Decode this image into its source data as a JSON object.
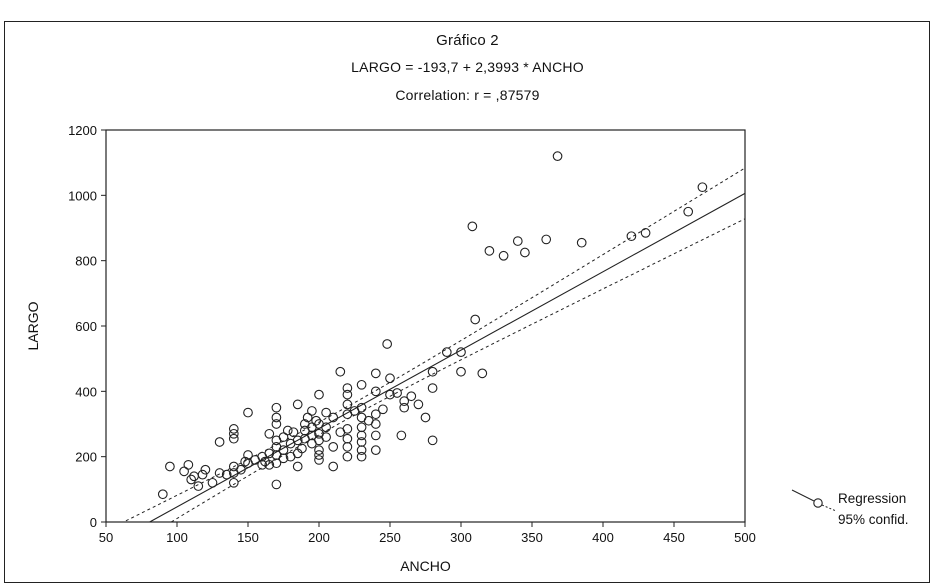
{
  "chart_data": {
    "type": "scatter",
    "title": "Gráfico  2",
    "subtitle": "LARGO = -193,7 + 2,3993 * ANCHO",
    "annotation": "Correlation: r = ,87579",
    "xlabel": "ANCHO",
    "ylabel": "LARGO",
    "xlim": [
      50,
      500
    ],
    "ylim": [
      0,
      1200
    ],
    "x_ticks": [
      50,
      100,
      150,
      200,
      250,
      300,
      350,
      400,
      450,
      500
    ],
    "y_ticks": [
      0,
      200,
      400,
      600,
      800,
      1000,
      1200
    ],
    "grid": false,
    "legend": {
      "placement": "right",
      "entries": [
        "Regression",
        "95% confid."
      ]
    },
    "regression": {
      "intercept": -193.7,
      "slope": 2.3993
    },
    "series": [
      {
        "name": "",
        "points": [
          [
            90,
            85
          ],
          [
            95,
            170
          ],
          [
            105,
            155
          ],
          [
            108,
            175
          ],
          [
            110,
            130
          ],
          [
            112,
            140
          ],
          [
            115,
            110
          ],
          [
            118,
            145
          ],
          [
            120,
            160
          ],
          [
            125,
            120
          ],
          [
            130,
            150
          ],
          [
            130,
            245
          ],
          [
            135,
            145
          ],
          [
            140,
            150
          ],
          [
            140,
            170
          ],
          [
            140,
            120
          ],
          [
            140,
            255
          ],
          [
            140,
            270
          ],
          [
            140,
            285
          ],
          [
            145,
            160
          ],
          [
            148,
            185
          ],
          [
            150,
            180
          ],
          [
            150,
            205
          ],
          [
            150,
            335
          ],
          [
            155,
            190
          ],
          [
            160,
            175
          ],
          [
            160,
            200
          ],
          [
            162,
            185
          ],
          [
            165,
            175
          ],
          [
            165,
            210
          ],
          [
            165,
            270
          ],
          [
            170,
            115
          ],
          [
            170,
            180
          ],
          [
            170,
            205
          ],
          [
            170,
            230
          ],
          [
            170,
            250
          ],
          [
            170,
            300
          ],
          [
            170,
            320
          ],
          [
            170,
            350
          ],
          [
            175,
            195
          ],
          [
            175,
            220
          ],
          [
            175,
            260
          ],
          [
            178,
            280
          ],
          [
            180,
            200
          ],
          [
            180,
            240
          ],
          [
            182,
            275
          ],
          [
            185,
            170
          ],
          [
            185,
            210
          ],
          [
            185,
            250
          ],
          [
            185,
            360
          ],
          [
            188,
            225
          ],
          [
            190,
            255
          ],
          [
            190,
            280
          ],
          [
            190,
            300
          ],
          [
            192,
            320
          ],
          [
            195,
            240
          ],
          [
            195,
            265
          ],
          [
            195,
            290
          ],
          [
            195,
            340
          ],
          [
            198,
            310
          ],
          [
            200,
            190
          ],
          [
            200,
            205
          ],
          [
            200,
            220
          ],
          [
            200,
            250
          ],
          [
            200,
            270
          ],
          [
            200,
            300
          ],
          [
            200,
            390
          ],
          [
            205,
            260
          ],
          [
            205,
            290
          ],
          [
            205,
            335
          ],
          [
            210,
            170
          ],
          [
            210,
            230
          ],
          [
            210,
            320
          ],
          [
            215,
            275
          ],
          [
            215,
            460
          ],
          [
            220,
            200
          ],
          [
            220,
            230
          ],
          [
            220,
            255
          ],
          [
            220,
            285
          ],
          [
            220,
            330
          ],
          [
            220,
            360
          ],
          [
            220,
            390
          ],
          [
            220,
            410
          ],
          [
            225,
            340
          ],
          [
            230,
            200
          ],
          [
            230,
            220
          ],
          [
            230,
            245
          ],
          [
            230,
            265
          ],
          [
            230,
            290
          ],
          [
            230,
            320
          ],
          [
            230,
            350
          ],
          [
            230,
            420
          ],
          [
            235,
            310
          ],
          [
            240,
            220
          ],
          [
            240,
            265
          ],
          [
            240,
            300
          ],
          [
            240,
            330
          ],
          [
            240,
            400
          ],
          [
            240,
            455
          ],
          [
            245,
            345
          ],
          [
            248,
            545
          ],
          [
            250,
            440
          ],
          [
            250,
            390
          ],
          [
            255,
            395
          ],
          [
            258,
            265
          ],
          [
            260,
            350
          ],
          [
            260,
            370
          ],
          [
            265,
            385
          ],
          [
            270,
            360
          ],
          [
            275,
            320
          ],
          [
            280,
            460
          ],
          [
            280,
            410
          ],
          [
            280,
            250
          ],
          [
            290,
            520
          ],
          [
            300,
            520
          ],
          [
            300,
            460
          ],
          [
            308,
            905
          ],
          [
            310,
            620
          ],
          [
            315,
            455
          ],
          [
            320,
            830
          ],
          [
            330,
            815
          ],
          [
            340,
            860
          ],
          [
            345,
            825
          ],
          [
            360,
            865
          ],
          [
            368,
            1120
          ],
          [
            385,
            855
          ],
          [
            420,
            875
          ],
          [
            430,
            885
          ],
          [
            460,
            950
          ],
          [
            470,
            1025
          ]
        ]
      }
    ]
  }
}
